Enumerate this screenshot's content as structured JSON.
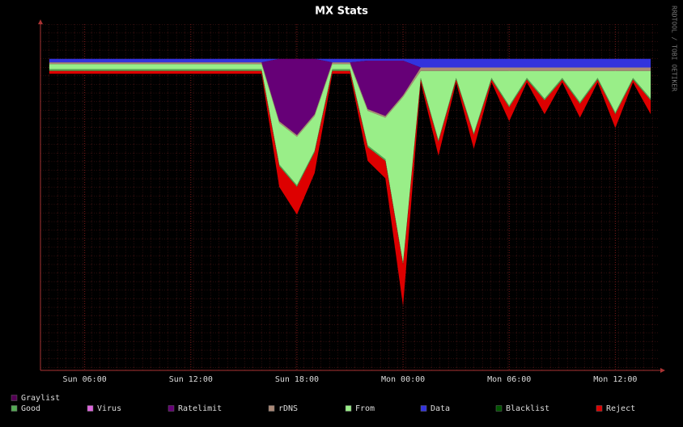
{
  "chart_data": {
    "type": "stacked-area",
    "title": "MX Stats",
    "side_label": "RRDTOOL / TOBI OETIKER",
    "categories": [
      null,
      null,
      "Sun 06:00",
      null,
      null,
      null,
      null,
      null,
      "Sun 12:00",
      null,
      null,
      null,
      null,
      null,
      "Sun 18:00",
      null,
      null,
      null,
      null,
      null,
      "Mon 00:00",
      null,
      null,
      null,
      null,
      null,
      "Mon 06:00",
      null,
      null,
      null,
      null,
      null,
      "Mon 12:00",
      null,
      null
    ],
    "ylim": [
      -10,
      90
    ],
    "series": [
      {
        "name": "Graylist",
        "color": "#550055",
        "values": [
          0,
          0,
          0,
          0,
          0,
          0,
          0,
          0,
          0,
          0,
          0,
          0,
          0,
          0,
          0,
          0,
          0,
          0,
          0,
          0,
          0,
          0,
          0,
          0,
          0,
          0,
          0,
          0,
          0,
          0,
          0,
          0,
          0,
          0,
          0
        ]
      },
      {
        "name": "Good",
        "color": "#55aa55",
        "values": [
          0.5,
          0.5,
          0.5,
          0.5,
          0.5,
          0.5,
          0.5,
          0.5,
          0.5,
          0.5,
          0.5,
          0.5,
          0.5,
          0.5,
          0.5,
          0.5,
          0.5,
          0.5,
          0.5,
          0.5,
          0.5,
          0.5,
          0.5,
          0.5,
          0.5,
          0.5,
          0.5,
          0.5,
          0.5,
          0.5,
          0.5,
          0.5,
          0.5,
          0.5,
          0.5
        ]
      },
      {
        "name": "Virus",
        "color": "#dd66dd",
        "values": [
          0,
          0,
          0,
          0,
          0,
          0,
          0,
          0,
          0,
          0,
          0,
          0,
          0,
          0,
          0,
          0,
          0,
          0,
          0,
          0,
          0,
          0,
          0,
          0,
          0,
          0,
          0,
          0,
          0,
          0,
          0,
          0,
          0,
          0,
          0
        ]
      },
      {
        "name": "Ratelimit",
        "color": "#660077",
        "values": [
          0,
          0,
          0,
          0,
          0,
          0,
          0,
          0,
          0,
          0,
          0,
          0,
          0,
          18,
          22,
          16,
          0,
          0,
          14,
          16,
          10,
          0,
          0,
          0,
          0,
          0,
          0,
          0,
          0,
          0,
          0,
          0,
          0,
          0,
          0
        ]
      },
      {
        "name": "rDNS",
        "color": "#aa8877",
        "values": [
          0.5,
          0.5,
          0.5,
          0.5,
          0.5,
          0.5,
          0.5,
          0.5,
          0.5,
          0.5,
          0.5,
          0.5,
          0.5,
          0.5,
          0.5,
          0.5,
          0.5,
          0.5,
          0.5,
          0.5,
          0.5,
          1,
          1,
          1,
          1,
          1,
          1,
          1,
          1,
          1,
          1,
          1,
          1,
          1,
          1
        ]
      },
      {
        "name": "From",
        "color": "#99ee88",
        "values": [
          1.5,
          1.5,
          1.5,
          1.5,
          1.5,
          1.5,
          1.5,
          1.5,
          1.5,
          1.5,
          1.5,
          1.5,
          1.5,
          12,
          14,
          10,
          1.5,
          1.5,
          10,
          12,
          48,
          2,
          20,
          2,
          18,
          2,
          10,
          2,
          8,
          2,
          9,
          2,
          12,
          2,
          8
        ]
      },
      {
        "name": "Data",
        "color": "#3333dd",
        "values": [
          1,
          1,
          1,
          1,
          1,
          1,
          1,
          1,
          1,
          1,
          1,
          1,
          1,
          0,
          0,
          0,
          1,
          1,
          0.5,
          0.5,
          0.5,
          2.5,
          2.5,
          2.5,
          2.5,
          2.5,
          2.5,
          2.5,
          2.5,
          2.5,
          2.5,
          2.5,
          2.5,
          2.5,
          2.5
        ]
      },
      {
        "name": "Blacklist",
        "color": "#005500",
        "values": [
          0,
          0,
          0,
          0,
          0,
          0,
          0,
          0,
          0,
          0,
          0,
          0,
          0,
          0,
          0,
          0,
          0,
          0,
          0,
          0,
          0,
          0,
          0,
          0,
          0,
          0,
          0,
          0,
          0,
          0,
          0,
          0,
          0,
          0,
          0
        ]
      },
      {
        "name": "Reject",
        "color": "#dd0000",
        "values": [
          0.8,
          0.8,
          0.8,
          0.8,
          0.8,
          0.8,
          0.8,
          0.8,
          0.8,
          0.8,
          0.8,
          0.8,
          0.8,
          6,
          8,
          6,
          0.8,
          0.8,
          4,
          5,
          12,
          0.8,
          4,
          0.8,
          4,
          0.8,
          4,
          0.8,
          4,
          0.8,
          4,
          0.8,
          4,
          0.8,
          4
        ]
      }
    ],
    "stack_order": [
      "Data",
      "Ratelimit",
      "rDNS",
      "From",
      "Good",
      "Graylist",
      "Virus",
      "Blacklist",
      "Reject"
    ]
  }
}
